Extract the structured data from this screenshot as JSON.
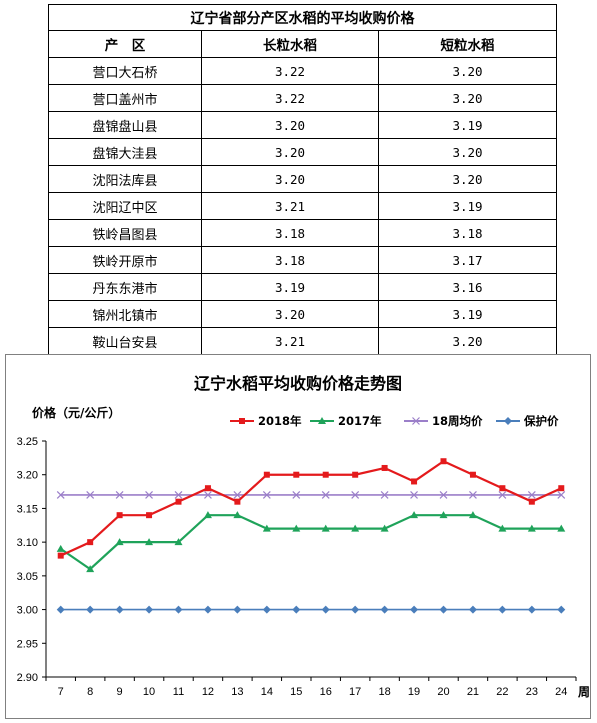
{
  "table": {
    "title": "辽宁省部分产区水稻的平均收购价格",
    "headers": [
      "产　区",
      "长粒水稻",
      "短粒水稻"
    ],
    "rows": [
      [
        "营口大石桥",
        "3.22",
        "3.20"
      ],
      [
        "营口盖州市",
        "3.22",
        "3.20"
      ],
      [
        "盘锦盘山县",
        "3.20",
        "3.19"
      ],
      [
        "盘锦大洼县",
        "3.20",
        "3.20"
      ],
      [
        "沈阳法库县",
        "3.20",
        "3.20"
      ],
      [
        "沈阳辽中区",
        "3.21",
        "3.19"
      ],
      [
        "铁岭昌图县",
        "3.18",
        "3.18"
      ],
      [
        "铁岭开原市",
        "3.18",
        "3.17"
      ],
      [
        "丹东东港市",
        "3.19",
        "3.16"
      ],
      [
        "锦州北镇市",
        "3.20",
        "3.19"
      ],
      [
        "鞍山台安县",
        "3.21",
        "3.20"
      ]
    ]
  },
  "chart_data": {
    "type": "line",
    "title": "辽宁水稻平均收购价格走势图",
    "ylabel": "价格（元/公斤）",
    "xlabel": "周",
    "x": [
      7,
      8,
      9,
      10,
      11,
      12,
      13,
      14,
      15,
      16,
      17,
      18,
      19,
      20,
      21,
      22,
      23,
      24
    ],
    "ylim": [
      2.9,
      3.25
    ],
    "yticks": [
      "3.25",
      "3.20",
      "3.15",
      "3.10",
      "3.05",
      "3.00",
      "2.95",
      "2.90"
    ],
    "legend_position": "top-right",
    "grid": false,
    "series": [
      {
        "name": "2018年",
        "color": "#e41a1c",
        "marker": "square",
        "values": [
          3.08,
          3.1,
          3.14,
          3.14,
          3.16,
          3.18,
          3.16,
          3.2,
          3.2,
          3.2,
          3.2,
          3.21,
          3.19,
          3.22,
          3.2,
          3.18,
          3.16,
          3.18
        ]
      },
      {
        "name": "2017年",
        "color": "#1fa35a",
        "marker": "triangle",
        "values": [
          3.09,
          3.06,
          3.1,
          3.1,
          3.1,
          3.14,
          3.14,
          3.12,
          3.12,
          3.12,
          3.12,
          3.12,
          3.14,
          3.14,
          3.14,
          3.12,
          3.12,
          3.12
        ]
      },
      {
        "name": "18周均价",
        "color": "#9b7fc9",
        "marker": "x",
        "values": [
          3.17,
          3.17,
          3.17,
          3.17,
          3.17,
          3.17,
          3.17,
          3.17,
          3.17,
          3.17,
          3.17,
          3.17,
          3.17,
          3.17,
          3.17,
          3.17,
          3.17,
          3.17
        ]
      },
      {
        "name": "保护价",
        "color": "#4a7ebb",
        "marker": "diamond",
        "values": [
          3.0,
          3.0,
          3.0,
          3.0,
          3.0,
          3.0,
          3.0,
          3.0,
          3.0,
          3.0,
          3.0,
          3.0,
          3.0,
          3.0,
          3.0,
          3.0,
          3.0,
          3.0
        ]
      }
    ]
  }
}
